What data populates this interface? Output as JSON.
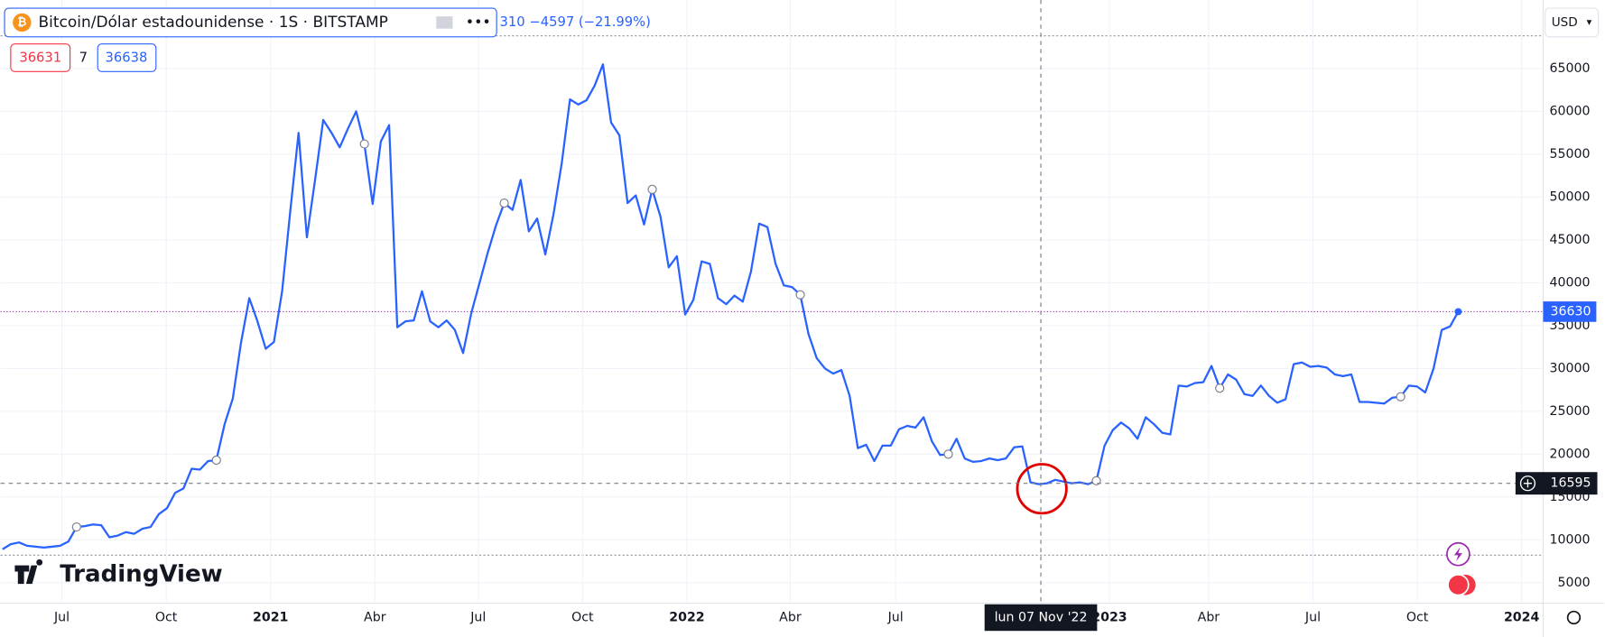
{
  "header": {
    "symbol": "Bitcoin/Dólar estadounidense · 1S · BITSTAMP",
    "change_prefix": "310",
    "change": "−4597 (−21.99%)",
    "sell": "36631",
    "spread": "7",
    "buy": "36638",
    "currency": "USD",
    "brand": "TradingView"
  },
  "chart_data": {
    "type": "line",
    "x_axis_labels": [
      "Jul",
      "Oct",
      "2021",
      "Abr",
      "Jul",
      "Oct",
      "2022",
      "Abr",
      "Jul",
      "2023",
      "Abr",
      "Jul",
      "Oct",
      "2024"
    ],
    "series": [
      {
        "color": "#2962ff",
        "values": [
          8900,
          9500,
          9700,
          9300,
          9200,
          9100,
          9200,
          9300,
          9800,
          11500,
          11600,
          11800,
          11700,
          10300,
          10500,
          10900,
          10700,
          11300,
          11500,
          13000,
          13700,
          15500,
          16000,
          18300,
          18200,
          19200,
          19300,
          23500,
          26500,
          33000,
          38200,
          35500,
          32300,
          33100,
          39000,
          48500,
          57500,
          45300,
          52000,
          59000,
          57500,
          55800,
          58000,
          60000,
          56200,
          49200,
          56500,
          58400,
          34800,
          35500,
          35600,
          39000,
          35500,
          34800,
          35600,
          34500,
          31800,
          36500,
          40000,
          43500,
          46700,
          49300,
          48500,
          52000,
          46000,
          47500,
          43300,
          48000,
          54000,
          61400,
          60800,
          61300,
          63000,
          65500,
          58700,
          57200,
          49300,
          50200,
          46800,
          50900,
          47700,
          41800,
          43100,
          36300,
          38000,
          42500,
          42200,
          38200,
          37500,
          38500,
          37800,
          41300,
          46900,
          46500,
          42200,
          39700,
          39500,
          38600,
          34000,
          31200,
          30000,
          29400,
          29800,
          26800,
          20700,
          21100,
          19200,
          21000,
          21000,
          22900,
          23300,
          23100,
          24300,
          21500,
          19900,
          20000,
          21800,
          19500,
          19100,
          19200,
          19500,
          19300,
          19500,
          20800,
          20900,
          16700,
          16500,
          16600,
          17000,
          16800,
          16600,
          16700,
          16500,
          16900,
          21000,
          22800,
          23700,
          23000,
          21800,
          24300,
          23500,
          22500,
          22300,
          28000,
          27900,
          28300,
          28400,
          30300,
          27700,
          29300,
          28700,
          27000,
          26800,
          28000,
          26800,
          26000,
          26400,
          30500,
          30700,
          30200,
          30300,
          30100,
          29300,
          29100,
          29300,
          26100,
          26100,
          26000,
          25900,
          26600,
          26700,
          28000,
          27900,
          27200,
          30000,
          34500,
          34900,
          36630
        ]
      }
    ],
    "ylim": [
      2600,
      73000
    ],
    "yticks": [
      5000,
      10000,
      15000,
      20000,
      25000,
      30000,
      35000,
      40000,
      45000,
      50000,
      55000,
      60000,
      65000
    ],
    "grid": true,
    "crosshair_price": 16595,
    "crosshair_date": "lun 07 Nov '22"
  }
}
